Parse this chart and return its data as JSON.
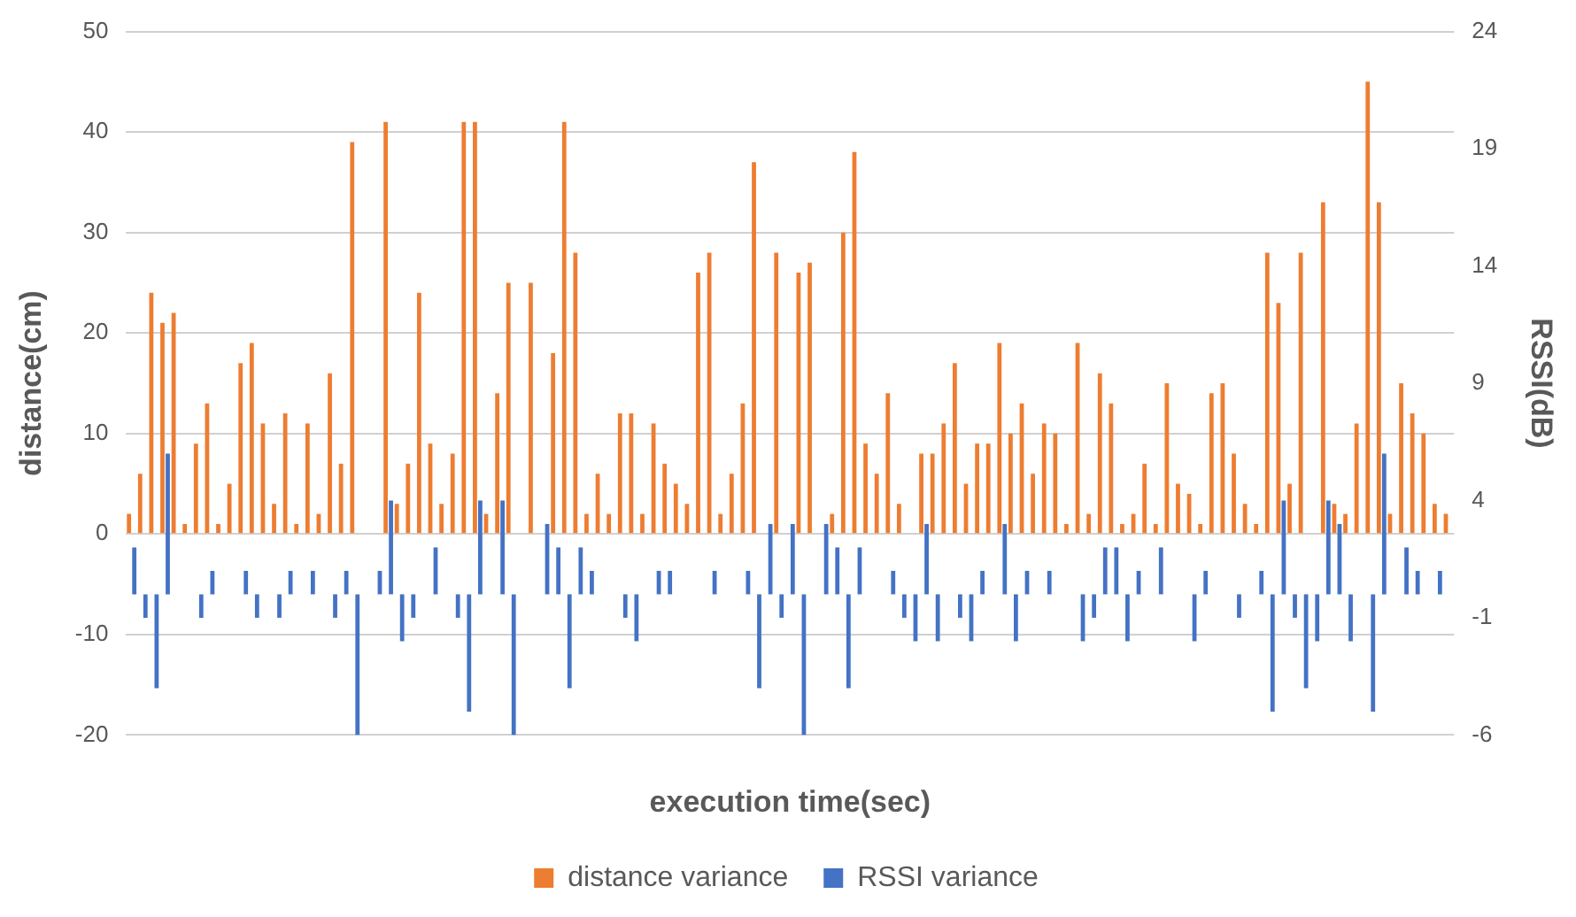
{
  "chart_data": {
    "type": "bar",
    "xlabel": "execution time(sec)",
    "ylabel": "distance(cm)",
    "y2label": "RSSI(dB)",
    "categories": [
      null,
      null,
      null,
      null,
      null,
      null,
      null,
      null,
      null,
      null,
      null,
      null,
      null,
      null,
      null,
      null,
      null,
      null,
      null,
      null,
      null,
      null,
      null,
      null,
      null,
      null,
      null,
      null,
      null,
      null,
      null,
      null,
      null,
      null,
      null,
      null,
      null,
      null,
      null,
      null,
      null,
      null,
      null,
      null,
      null,
      null,
      null,
      null,
      null,
      null,
      null,
      null,
      null,
      null,
      null,
      null,
      null,
      null,
      null,
      null,
      null,
      null,
      null,
      null,
      null,
      null,
      null,
      null,
      null,
      null,
      null,
      null,
      null,
      null,
      null,
      null,
      null,
      null,
      null,
      null,
      null,
      null,
      null,
      null,
      null,
      null,
      null,
      null,
      null,
      null,
      null,
      null,
      null,
      null,
      null,
      null,
      null,
      null,
      null,
      null,
      null,
      null,
      null,
      null,
      null,
      null,
      null,
      null,
      null,
      null,
      null,
      null,
      null,
      null,
      null,
      null,
      null,
      null,
      null
    ],
    "series": [
      {
        "name": "distance variance",
        "color": "#ed7d31",
        "values": [
          2,
          6,
          24,
          21,
          22,
          1,
          9,
          13,
          1,
          5,
          17,
          19,
          11,
          3,
          12,
          1,
          11,
          2,
          16,
          7,
          39,
          0,
          0,
          41,
          3,
          7,
          24,
          9,
          3,
          8,
          41,
          41,
          2,
          14,
          25,
          0,
          25,
          0,
          18,
          41,
          28,
          2,
          6,
          2,
          12,
          12,
          2,
          11,
          7,
          5,
          3,
          26,
          28,
          2,
          6,
          13,
          37,
          0,
          28,
          0,
          26,
          27,
          0,
          2,
          30,
          38,
          9,
          6,
          14,
          3,
          0,
          8,
          8,
          11,
          17,
          5,
          9,
          9,
          19,
          10,
          13,
          6,
          11,
          10,
          1,
          19,
          2,
          16,
          13,
          1,
          2,
          7,
          1,
          15,
          5,
          4,
          1,
          14,
          15,
          8,
          3,
          1,
          28,
          23,
          5,
          28,
          0,
          33,
          3,
          2,
          11,
          45,
          33,
          2,
          15,
          12,
          10,
          3,
          2
        ]
      },
      {
        "name": "RSSI variance",
        "color": "#4472c4",
        "axis": "y2",
        "values": [
          2,
          -1,
          -4,
          6,
          0,
          0,
          -1,
          1,
          0,
          0,
          1,
          -1,
          0,
          -1,
          1,
          0,
          1,
          0,
          -1,
          1,
          -6,
          0,
          1,
          4,
          -2,
          -1,
          0,
          2,
          0,
          -1,
          -5,
          4,
          0,
          4,
          -6,
          0,
          0,
          3,
          2,
          -4,
          2,
          1,
          0,
          0,
          -1,
          -2,
          0,
          1,
          1,
          0,
          0,
          0,
          1,
          0,
          0,
          1,
          -4,
          3,
          -1,
          3,
          -6,
          0,
          3,
          2,
          -4,
          2,
          0,
          0,
          1,
          -1,
          -2,
          3,
          -2,
          0,
          -1,
          -2,
          1,
          0,
          3,
          -2,
          1,
          0,
          1,
          0,
          0,
          -2,
          -1,
          2,
          2,
          -2,
          1,
          0,
          2,
          0,
          0,
          -2,
          1,
          0,
          0,
          -1,
          0,
          1,
          -5,
          4,
          -1,
          -4,
          -2,
          4,
          3,
          -2,
          0,
          -5,
          6,
          0,
          2,
          1,
          0,
          1,
          0
        ]
      }
    ],
    "ylim": [
      -20,
      50
    ],
    "yticks": [
      -20,
      -10,
      0,
      10,
      20,
      30,
      40,
      50
    ],
    "y2lim": [
      -6,
      24
    ],
    "y2ticks": [
      -6,
      -1,
      4,
      9,
      14,
      19,
      24
    ],
    "grid": "y",
    "legend": "bottom"
  }
}
